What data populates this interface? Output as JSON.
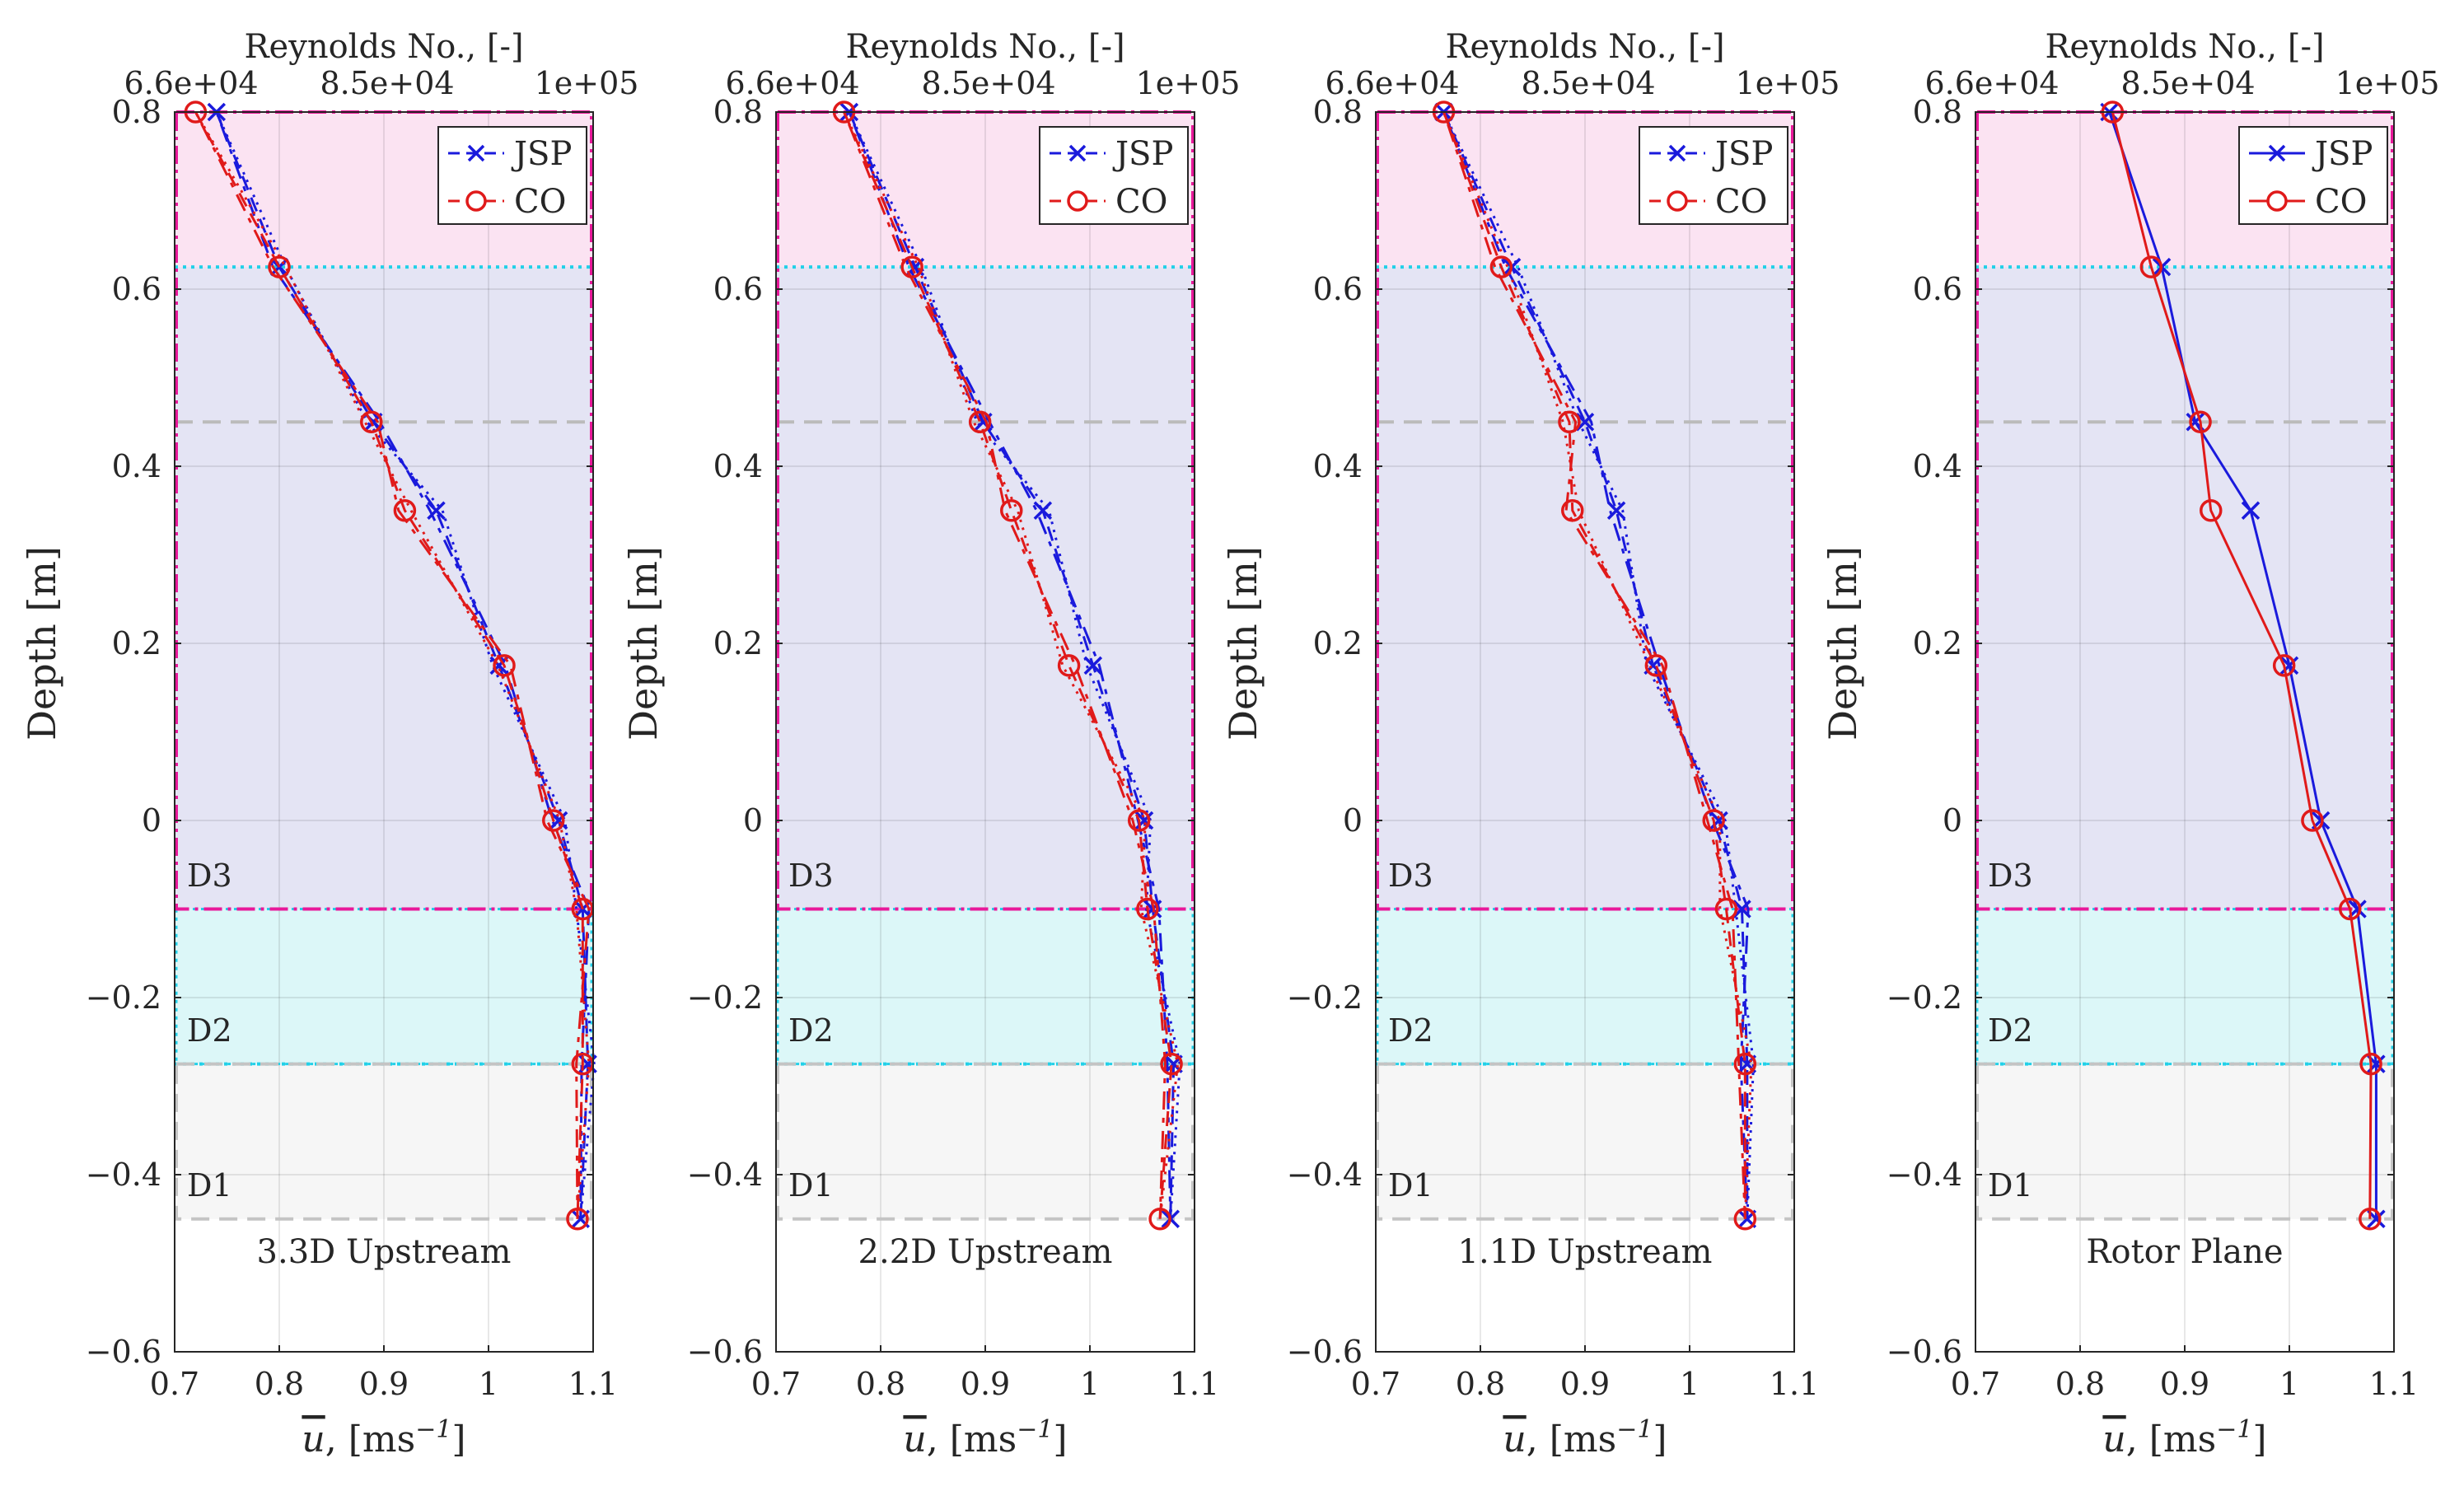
{
  "figure": {
    "top_axis_label": "Reynolds No., [-]",
    "top_ticks": [
      "6.6e+04",
      "8.5e+04",
      "1e+05"
    ],
    "xlabel_main": "u",
    "xlabel_rest": ", [ms",
    "xlabel_exp": "−1",
    "xlabel_close": "]",
    "ylabel": "Depth [m]",
    "x_ticks": [
      "0.7",
      "0.8",
      "0.9",
      "1",
      "1.1"
    ],
    "y_ticks": [
      "0.8",
      "0.6",
      "0.4",
      "0.2",
      "0",
      "−0.2",
      "−0.4",
      "−0.6"
    ],
    "region_labels": [
      "D3",
      "D2",
      "D1"
    ],
    "legend": [
      "JSP",
      "CO"
    ]
  },
  "chart_data": [
    {
      "type": "line",
      "title": "3.3D Upstream",
      "xlabel": "ū, [ms^-1]",
      "ylabel": "Depth [m]",
      "top_xlabel": "Reynolds No., [-]",
      "xlim": [
        0.7,
        1.1
      ],
      "ylim": [
        -0.6,
        0.8
      ],
      "regions": [
        {
          "name": "D3",
          "y": [
            -0.1,
            0.8
          ],
          "color": "#d8d8f0"
        },
        {
          "name": "D2",
          "y": [
            -0.275,
            -0.1
          ],
          "color": "#dff8f8"
        },
        {
          "name": "D1",
          "y": [
            -0.45,
            -0.275
          ],
          "color": "#f6f6f6"
        }
      ],
      "series": [
        {
          "name": "JSP",
          "color": "#2222cc",
          "marker": "x",
          "points": [
            [
              0.74,
              0.8
            ],
            [
              0.8,
              0.625
            ],
            [
              0.89,
              0.45
            ],
            [
              0.95,
              0.35
            ],
            [
              1.01,
              0.175
            ],
            [
              1.067,
              0.0
            ],
            [
              1.09,
              -0.1
            ],
            [
              1.095,
              -0.275
            ],
            [
              1.088,
              -0.45
            ]
          ]
        },
        {
          "name": "CO",
          "color": "#dd2222",
          "marker": "o",
          "points": [
            [
              0.72,
              0.8
            ],
            [
              0.8,
              0.625
            ],
            [
              0.888,
              0.45
            ],
            [
              0.92,
              0.35
            ],
            [
              1.015,
              0.175
            ],
            [
              1.062,
              0.0
            ],
            [
              1.09,
              -0.1
            ],
            [
              1.09,
              -0.275
            ],
            [
              1.085,
              -0.45
            ]
          ]
        }
      ]
    },
    {
      "type": "line",
      "title": "2.2D Upstream",
      "xlabel": "ū, [ms^-1]",
      "ylabel": "Depth [m]",
      "top_xlabel": "Reynolds No., [-]",
      "xlim": [
        0.7,
        1.1
      ],
      "ylim": [
        -0.6,
        0.8
      ],
      "regions": [
        {
          "name": "D3",
          "y": [
            -0.1,
            0.8
          ],
          "color": "#d8d8f0"
        },
        {
          "name": "D2",
          "y": [
            -0.275,
            -0.1
          ],
          "color": "#dff8f8"
        },
        {
          "name": "D1",
          "y": [
            -0.45,
            -0.275
          ],
          "color": "#f6f6f6"
        }
      ],
      "series": [
        {
          "name": "JSP",
          "color": "#2222cc",
          "marker": "x",
          "points": [
            [
              0.77,
              0.8
            ],
            [
              0.833,
              0.625
            ],
            [
              0.898,
              0.45
            ],
            [
              0.955,
              0.35
            ],
            [
              1.003,
              0.175
            ],
            [
              1.052,
              0.0
            ],
            [
              1.06,
              -0.1
            ],
            [
              1.08,
              -0.275
            ],
            [
              1.077,
              -0.45
            ]
          ]
        },
        {
          "name": "CO",
          "color": "#dd2222",
          "marker": "o",
          "points": [
            [
              0.765,
              0.8
            ],
            [
              0.83,
              0.625
            ],
            [
              0.895,
              0.45
            ],
            [
              0.925,
              0.35
            ],
            [
              0.98,
              0.175
            ],
            [
              1.047,
              0.0
            ],
            [
              1.055,
              -0.1
            ],
            [
              1.078,
              -0.275
            ],
            [
              1.067,
              -0.45
            ]
          ]
        }
      ]
    },
    {
      "type": "line",
      "title": "1.1D Upstream",
      "xlabel": "ū, [ms^-1]",
      "ylabel": "Depth [m]",
      "top_xlabel": "Reynolds No., [-]",
      "xlim": [
        0.7,
        1.1
      ],
      "ylim": [
        -0.6,
        0.8
      ],
      "regions": [
        {
          "name": "D3",
          "y": [
            -0.1,
            0.8
          ],
          "color": "#d8d8f0"
        },
        {
          "name": "D2",
          "y": [
            -0.275,
            -0.1
          ],
          "color": "#dff8f8"
        },
        {
          "name": "D1",
          "y": [
            -0.45,
            -0.275
          ],
          "color": "#f6f6f6"
        }
      ],
      "series": [
        {
          "name": "JSP",
          "color": "#2222cc",
          "marker": "x",
          "points": [
            [
              0.765,
              0.8
            ],
            [
              0.83,
              0.625
            ],
            [
              0.9,
              0.45
            ],
            [
              0.93,
              0.35
            ],
            [
              0.965,
              0.175
            ],
            [
              1.028,
              0.0
            ],
            [
              1.05,
              -0.1
            ],
            [
              1.055,
              -0.275
            ],
            [
              1.055,
              -0.45
            ]
          ]
        },
        {
          "name": "CO",
          "color": "#dd2222",
          "marker": "o",
          "points": [
            [
              0.765,
              0.8
            ],
            [
              0.82,
              0.625
            ],
            [
              0.885,
              0.45
            ],
            [
              0.888,
              0.35
            ],
            [
              0.968,
              0.175
            ],
            [
              1.023,
              0.0
            ],
            [
              1.035,
              -0.1
            ],
            [
              1.053,
              -0.275
            ],
            [
              1.053,
              -0.45
            ]
          ]
        }
      ]
    },
    {
      "type": "line",
      "title": "Rotor Plane",
      "xlabel": "ū, [ms^-1]",
      "ylabel": "Depth [m]",
      "top_xlabel": "Reynolds No., [-]",
      "xlim": [
        0.7,
        1.1
      ],
      "ylim": [
        -0.6,
        0.8
      ],
      "regions": [
        {
          "name": "D3",
          "y": [
            -0.1,
            0.8
          ],
          "color": "#d8d8f0"
        },
        {
          "name": "D2",
          "y": [
            -0.275,
            -0.1
          ],
          "color": "#dff8f8"
        },
        {
          "name": "D1",
          "y": [
            -0.45,
            -0.275
          ],
          "color": "#f6f6f6"
        }
      ],
      "series": [
        {
          "name": "JSP",
          "color": "#2222cc",
          "marker": "x",
          "points": [
            [
              0.828,
              0.8
            ],
            [
              0.878,
              0.625
            ],
            [
              0.91,
              0.45
            ],
            [
              0.963,
              0.35
            ],
            [
              1.0,
              0.175
            ],
            [
              1.03,
              0.0
            ],
            [
              1.065,
              -0.1
            ],
            [
              1.083,
              -0.275
            ],
            [
              1.083,
              -0.45
            ]
          ]
        },
        {
          "name": "CO",
          "color": "#dd2222",
          "marker": "o",
          "points": [
            [
              0.831,
              0.8
            ],
            [
              0.868,
              0.625
            ],
            [
              0.915,
              0.45
            ],
            [
              0.925,
              0.35
            ],
            [
              0.995,
              0.175
            ],
            [
              1.022,
              0.0
            ],
            [
              1.058,
              -0.1
            ],
            [
              1.078,
              -0.275
            ],
            [
              1.077,
              -0.45
            ]
          ]
        }
      ]
    }
  ]
}
